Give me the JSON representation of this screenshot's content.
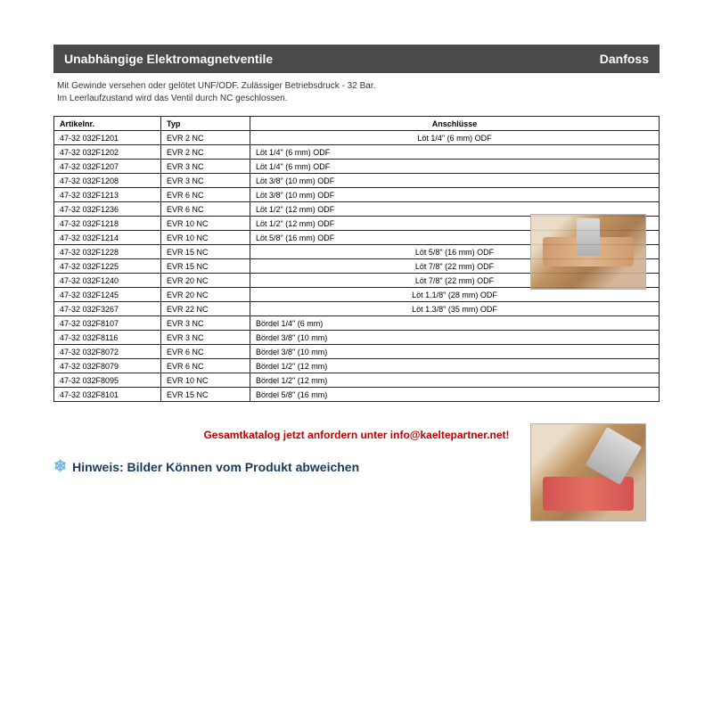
{
  "header": {
    "title": "Unabhängige Elektromagnetventile",
    "brand": "Danfoss"
  },
  "description": {
    "line1": "Mit Gewinde versehen oder gelötet UNF/ODF. Zulässiger Betriebsdruck - 32 Bar.",
    "line2": "Im Leerlaufzustand wird das Ventil durch NC geschlossen."
  },
  "columns": {
    "c1": "Artikelnr.",
    "c2": "Typ",
    "c3": "Anschlüsse"
  },
  "rows": [
    {
      "a": "47-32 032F1201",
      "t": "EVR 2 NC",
      "c": "Löt  1/4\" (6 mm) ODF"
    },
    {
      "a": "47-32 032F1202",
      "t": "EVR 2 NC",
      "c": "Löt 1/4\" (6 mm) ODF"
    },
    {
      "a": "47-32 032F1207",
      "t": "EVR 3 NC",
      "c": "Löt 1/4\" (6 mm) ODF"
    },
    {
      "a": "47-32 032F1208",
      "t": "EVR 3 NC",
      "c": "Löt 3/8\" (10 mm) ODF"
    },
    {
      "a": "47-32 032F1213",
      "t": "EVR 6 NC",
      "c": "Löt 3/8\" (10 mm) ODF"
    },
    {
      "a": "47-32 032F1236",
      "t": "EVR 6 NC",
      "c": "Löt 1/2\" (12 mm) ODF"
    },
    {
      "a": "47-32 032F1218",
      "t": "EVR 10 NC",
      "c": "Löt  1/2\" (12 mm) ODF"
    },
    {
      "a": "47-32 032F1214",
      "t": "EVR 10 NC",
      "c": "Löt  5/8\" (16 mm) ODF"
    },
    {
      "a": "47-32 032F1228",
      "t": "EVR 15 NC",
      "c": "Löt 5/8\" (16 mm) ODF"
    },
    {
      "a": "47-32 032F1225",
      "t": "EVR 15 NC",
      "c": "Löt 7/8\" (22 mm) ODF"
    },
    {
      "a": "47-32 032F1240",
      "t": "EVR 20 NC",
      "c": "Löt 7/8\" (22 mm) ODF"
    },
    {
      "a": "47-32 032F1245",
      "t": "EVR 20 NC",
      "c": "Löt 1.1/8\" (28 mm) ODF"
    },
    {
      "a": "47-32 032F3267",
      "t": "EVR 22 NC",
      "c": "Löt 1.3/8\" (35 mm) ODF"
    },
    {
      "a": "47-32 032F8107",
      "t": "EVR 3 NC",
      "c": "Bördel 1/4\" (6 mm)"
    },
    {
      "a": "47-32 032F8116",
      "t": "EVR 3 NC",
      "c": "Bördel 3/8\" (10 mm)"
    },
    {
      "a": "47-32 032F8072",
      "t": "EVR 6 NC",
      "c": "Bördel 3/8\" (10 mm)"
    },
    {
      "a": "47-32 032F8079",
      "t": "EVR 6 NC",
      "c": "Bördel 1/2\" (12 mm)"
    },
    {
      "a": "47-32 032F8095",
      "t": "EVR 10 NC",
      "c": "Bördel 1/2\" (12 mm)"
    },
    {
      "a": "47-32 032F8101",
      "t": "EVR 15 NC",
      "c": "Bördel 5/8\" (16 mm)"
    }
  ],
  "catalog": "Gesamtkatalog jetzt anfordern unter info@kaeltepartner.net!",
  "hinweis": "Hinweis: Bilder Können vom Produkt abweichen",
  "center_rows": [
    0,
    8,
    9,
    10,
    11,
    12
  ]
}
